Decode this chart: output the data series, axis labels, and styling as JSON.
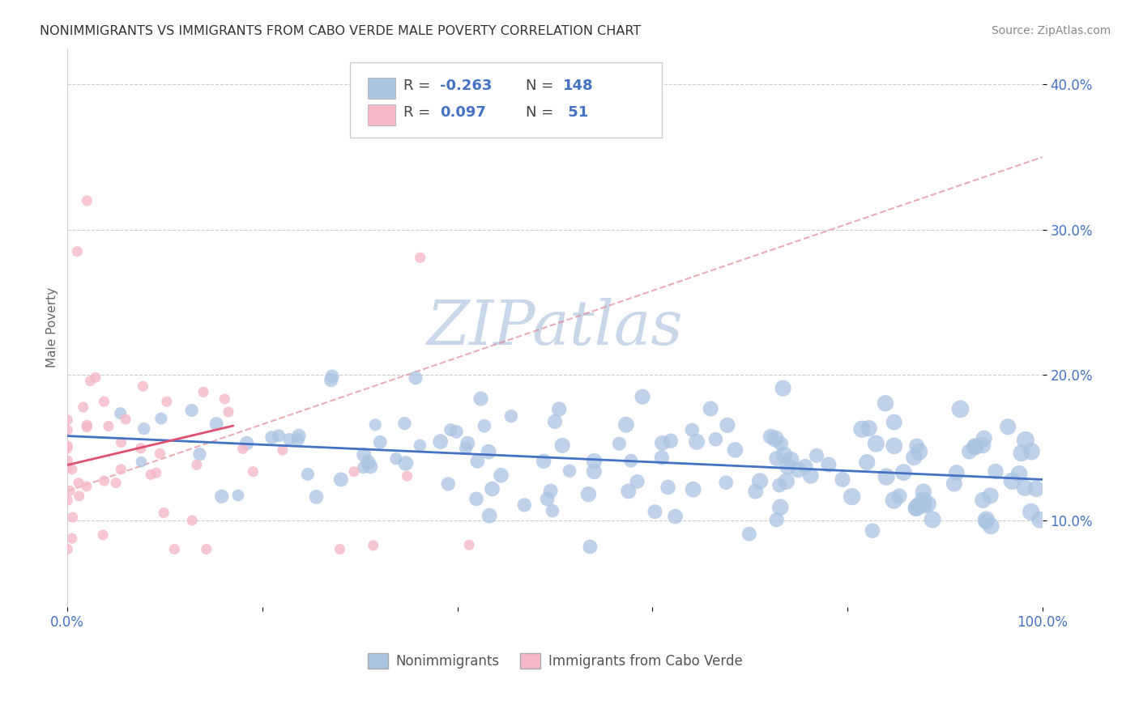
{
  "title": "NONIMMIGRANTS VS IMMIGRANTS FROM CABO VERDE MALE POVERTY CORRELATION CHART",
  "source_text": "Source: ZipAtlas.com",
  "ylabel": "Male Poverty",
  "x_min": 0.0,
  "x_max": 1.0,
  "y_min": 0.04,
  "y_max": 0.425,
  "x_ticks": [
    0.0,
    0.2,
    0.4,
    0.6,
    0.8,
    1.0
  ],
  "x_tick_labels": [
    "0.0%",
    "",
    "",
    "",
    "",
    "100.0%"
  ],
  "y_ticks": [
    0.1,
    0.2,
    0.3,
    0.4
  ],
  "y_tick_labels": [
    "10.0%",
    "20.0%",
    "30.0%",
    "40.0%"
  ],
  "legend_label_blue": "Nonimmigrants",
  "legend_label_pink": "Immigrants from Cabo Verde",
  "blue_color": "#aac4e2",
  "blue_line_color": "#4472c4",
  "pink_color": "#f4b8c8",
  "pink_line_color": "#e05070",
  "pink_dash_color": "#e08090",
  "grid_color": "#cccccc",
  "watermark_color": "#c8d8ea",
  "background_color": "#ffffff",
  "tick_label_color": "#4472c4",
  "blue_trendline": [
    0.0,
    1.0,
    0.158,
    0.128
  ],
  "pink_trendline": [
    0.0,
    0.17,
    0.138,
    0.165
  ],
  "pink_dash": [
    0.0,
    1.0,
    0.12,
    0.35
  ]
}
